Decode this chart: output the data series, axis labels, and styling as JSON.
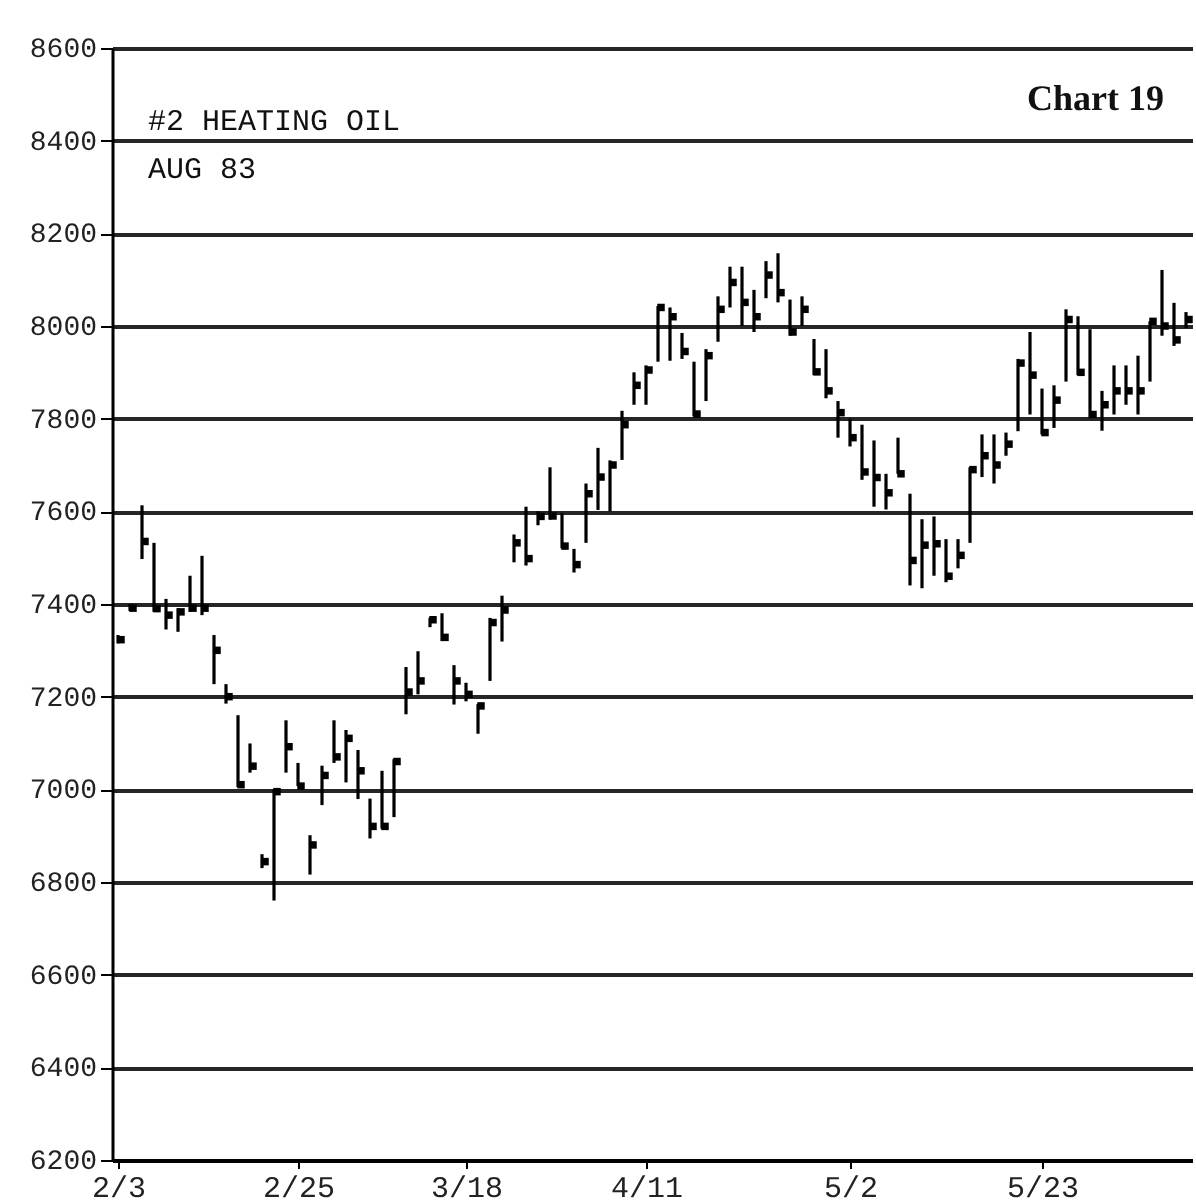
{
  "chart_data": {
    "type": "scatter",
    "title": "#2 HEATING OIL",
    "subtitle": "AUG 83",
    "annotations": [
      "Chart 19"
    ],
    "marker": "square",
    "categories": [
      "2/3",
      null,
      null,
      null,
      null,
      null,
      null,
      null,
      null,
      null,
      null,
      null,
      null,
      null,
      null,
      "2/25",
      null,
      null,
      null,
      null,
      null,
      null,
      null,
      null,
      null,
      null,
      null,
      null,
      null,
      "3/18",
      null,
      null,
      null,
      null,
      null,
      null,
      null,
      null,
      null,
      null,
      null,
      null,
      null,
      null,
      "4/11",
      null,
      null,
      null,
      null,
      null,
      null,
      null,
      null,
      null,
      null,
      null,
      null,
      null,
      null,
      null,
      null,
      "5/2",
      null,
      null,
      null,
      null,
      null,
      null,
      null,
      null,
      null,
      null,
      null,
      null,
      null,
      null,
      null,
      "5/23",
      null,
      null,
      null,
      null,
      null,
      null,
      null,
      null,
      null,
      null,
      null,
      null
    ],
    "series": [
      {
        "color": "#000000",
        "values": [
          7323,
          7391,
          7535,
          7390,
          7376,
          7383,
          7391,
          7391,
          7300,
          7200,
          7010,
          7050,
          6844,
          6995,
          7092,
          7007,
          6880,
          7030,
          7070,
          7110,
          7040,
          6920,
          6920,
          7060,
          7210,
          7234,
          7366,
          7328,
          7234,
          7205,
          7180,
          7360,
          7387,
          7532,
          7498,
          7589,
          7590,
          7525,
          7485,
          7638,
          7674,
          7700,
          7787,
          7872,
          7905,
          8040,
          8020,
          7945,
          7810,
          7936,
          8036,
          8094,
          8051,
          8020,
          8110,
          8072,
          7987,
          8036,
          7901,
          7860,
          7813,
          7759,
          7685,
          7673,
          7640,
          7681,
          7494,
          7527,
          7530,
          7460,
          7505,
          7690,
          7720,
          7700,
          7745,
          7920,
          7894,
          7770,
          7840,
          8014,
          7900,
          7809,
          7830,
          7860,
          7860,
          7860,
          8010,
          8000,
          7970,
          8014
        ],
        "errors": [
          [
            7315,
            7333
          ],
          [
            7385,
            7400
          ],
          [
            7497,
            7613
          ],
          [
            7383,
            7532
          ],
          [
            7345,
            7411
          ],
          [
            7340,
            7391
          ],
          [
            7383,
            7461
          ],
          [
            7376,
            7504
          ],
          [
            7227,
            7333
          ],
          [
            7185,
            7227
          ],
          [
            7005,
            7160
          ],
          [
            7036,
            7099
          ],
          [
            6830,
            6860
          ],
          [
            6760,
            7000
          ],
          [
            7036,
            7149
          ],
          [
            7007,
            7057
          ],
          [
            6816,
            6901
          ],
          [
            6966,
            7051
          ],
          [
            7057,
            7149
          ],
          [
            7015,
            7128
          ],
          [
            6979,
            7085
          ],
          [
            6894,
            6980
          ],
          [
            6915,
            7040
          ],
          [
            6940,
            7065
          ],
          [
            7162,
            7264
          ],
          [
            7205,
            7298
          ],
          [
            7350,
            7370
          ],
          [
            7320,
            7380
          ],
          [
            7183,
            7268
          ],
          [
            7190,
            7230
          ],
          [
            7120,
            7184
          ],
          [
            7234,
            7370
          ],
          [
            7319,
            7418
          ],
          [
            7490,
            7550
          ],
          [
            7483,
            7610
          ],
          [
            7570,
            7600
          ],
          [
            7582,
            7695
          ],
          [
            7520,
            7596
          ],
          [
            7468,
            7519
          ],
          [
            7532,
            7660
          ],
          [
            7603,
            7737
          ],
          [
            7600,
            7710
          ],
          [
            7711,
            7817
          ],
          [
            7830,
            7900
          ],
          [
            7830,
            7915
          ],
          [
            7923,
            8043
          ],
          [
            7925,
            8040
          ],
          [
            7929,
            7985
          ],
          [
            7805,
            7923
          ],
          [
            7838,
            7950
          ],
          [
            7966,
            8064
          ],
          [
            8040,
            8128
          ],
          [
            8000,
            8128
          ],
          [
            7987,
            8078
          ],
          [
            8060,
            8140
          ],
          [
            8051,
            8157
          ],
          [
            7979,
            8057
          ],
          [
            8000,
            8064
          ],
          [
            7894,
            7972
          ],
          [
            7844,
            7950
          ],
          [
            7759,
            7838
          ],
          [
            7740,
            7800
          ],
          [
            7668,
            7787
          ],
          [
            7610,
            7753
          ],
          [
            7604,
            7681
          ],
          [
            7681,
            7759
          ],
          [
            7440,
            7638
          ],
          [
            7434,
            7583
          ],
          [
            7461,
            7589
          ],
          [
            7447,
            7540
          ],
          [
            7477,
            7540
          ],
          [
            7532,
            7695
          ],
          [
            7674,
            7766
          ],
          [
            7660,
            7766
          ],
          [
            7720,
            7770
          ],
          [
            7773,
            7929
          ],
          [
            7809,
            7987
          ],
          [
            7766,
            7865
          ],
          [
            7780,
            7872
          ],
          [
            7880,
            8036
          ],
          [
            7894,
            8021
          ],
          [
            7801,
            7993
          ],
          [
            7774,
            7860
          ],
          [
            7809,
            7915
          ],
          [
            7830,
            7915
          ],
          [
            7809,
            7936
          ],
          [
            7880,
            8010
          ],
          [
            7979,
            8121
          ],
          [
            7957,
            8050
          ],
          [
            7996,
            8030
          ]
        ]
      }
    ],
    "ylim": [
      6200,
      8600
    ],
    "yticks": [
      6200,
      6400,
      6600,
      6800,
      7000,
      7200,
      7400,
      7600,
      7800,
      8000,
      8200,
      8400,
      8600
    ],
    "grid": "y"
  }
}
